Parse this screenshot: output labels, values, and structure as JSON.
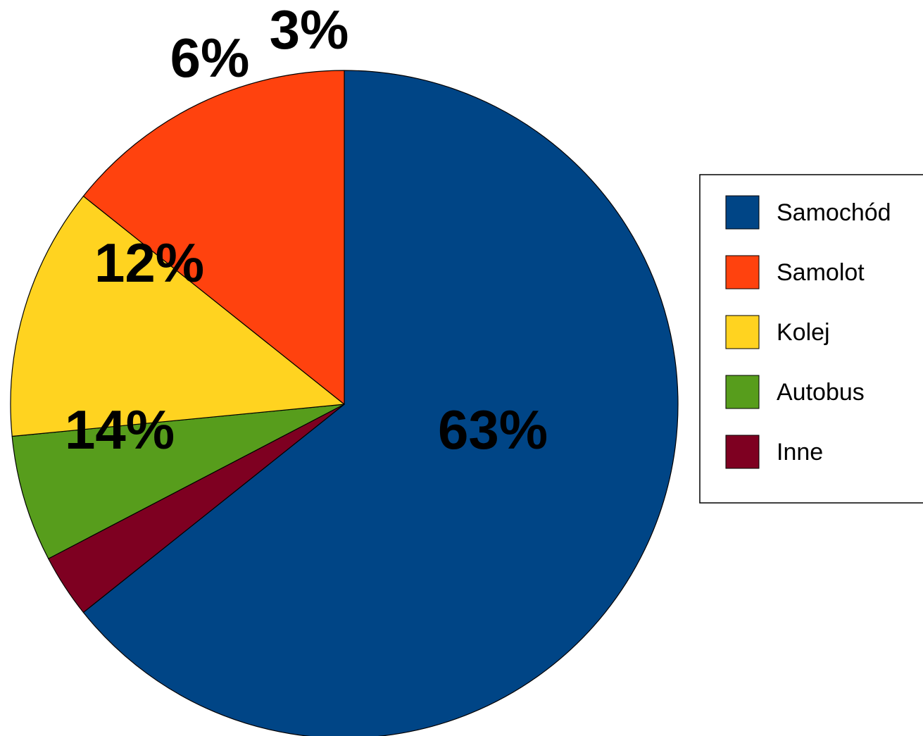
{
  "chart_data": {
    "type": "pie",
    "title": "",
    "start_angle_deg": 0,
    "direction": "clockwise",
    "legend_position": "right",
    "slices": [
      {
        "label": "Samochód",
        "value": 63,
        "display": "63%",
        "color": "#004586"
      },
      {
        "label": "Inne",
        "value": 3,
        "display": "3%",
        "color": "#7E0021"
      },
      {
        "label": "Autobus",
        "value": 6,
        "display": "6%",
        "color": "#579D1C"
      },
      {
        "label": "Kolej",
        "value": 12,
        "display": "12%",
        "color": "#FFD320"
      },
      {
        "label": "Samolot",
        "value": 14,
        "display": "14%",
        "color": "#FF420E"
      }
    ],
    "legend": [
      {
        "label": "Samochód",
        "color": "#004586"
      },
      {
        "label": "Samolot",
        "color": "#FF420E"
      },
      {
        "label": "Kolej",
        "color": "#FFD320"
      },
      {
        "label": "Autobus",
        "color": "#579D1C"
      },
      {
        "label": "Inne",
        "color": "#7E0021"
      }
    ]
  }
}
